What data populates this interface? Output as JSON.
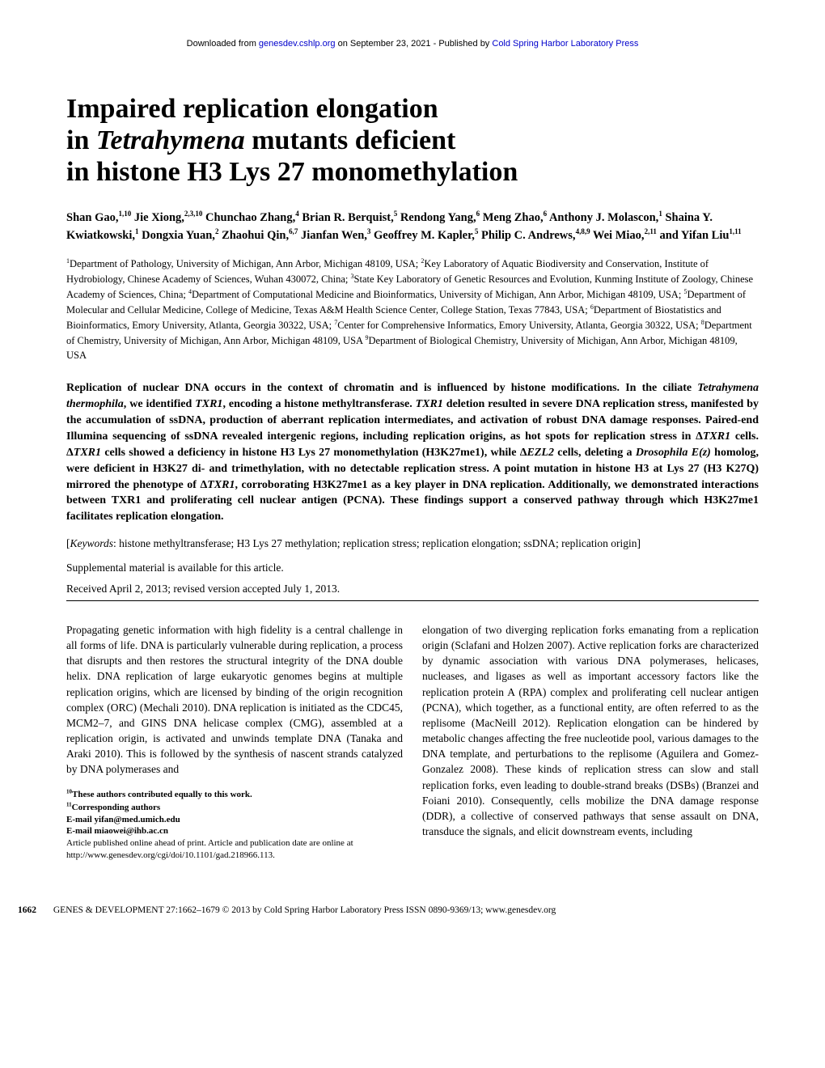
{
  "header": {
    "prefix": "Downloaded from ",
    "link1": "genesdev.cshlp.org",
    "mid": " on September 23, 2021 - Published by ",
    "link2": "Cold Spring Harbor Laboratory Press"
  },
  "title": {
    "line1": "Impaired replication elongation",
    "line2_a": "in ",
    "line2_b": "Tetrahymena",
    "line2_c": " mutants deficient",
    "line3": "in histone H3 Lys 27 monomethylation"
  },
  "authors": "Shan Gao,<sup>1,10</sup> Jie Xiong,<sup>2,3,10</sup> Chunchao Zhang,<sup>4</sup> Brian R. Berquist,<sup>5</sup> Rendong Yang,<sup>6</sup> Meng Zhao,<sup>6</sup> Anthony J. Molascon,<sup>1</sup> Shaina Y. Kwiatkowski,<sup>1</sup> Dongxia Yuan,<sup>2</sup> Zhaohui Qin,<sup>6,7</sup> Jianfan Wen,<sup>3</sup> Geoffrey M. Kapler,<sup>5</sup> Philip C. Andrews,<sup>4,8,9</sup> Wei Miao,<sup>2,11</sup> and Yifan Liu<sup>1,11</sup>",
  "affiliations": "<sup>1</sup>Department of Pathology, University of Michigan, Ann Arbor, Michigan 48109, USA; <sup>2</sup>Key Laboratory of Aquatic Biodiversity and Conservation, Institute of Hydrobiology, Chinese Academy of Sciences, Wuhan 430072, China; <sup>3</sup>State Key Laboratory of Genetic Resources and Evolution, Kunming Institute of Zoology, Chinese Academy of Sciences, China; <sup>4</sup>Department of Computational Medicine and Bioinformatics, University of Michigan, Ann Arbor, Michigan 48109, USA; <sup>5</sup>Department of Molecular and Cellular Medicine, College of Medicine, Texas A&amp;M Health Science Center, College Station, Texas 77843, USA; <sup>6</sup>Department of Biostatistics and Bioinformatics, Emory University, Atlanta, Georgia 30322, USA; <sup>7</sup>Center for Comprehensive Informatics, Emory University, Atlanta, Georgia 30322, USA; <sup>8</sup>Department of Chemistry, University of Michigan, Ann Arbor, Michigan 48109, USA <sup>9</sup>Department of Biological Chemistry, University of Michigan, Ann Arbor, Michigan 48109, USA",
  "abstract": "Replication of nuclear DNA occurs in the context of chromatin and is influenced by histone modifications. In the ciliate <span class=\"ital\">Tetrahymena thermophila</span>, we identified <span class=\"ital\">TXR1</span>, encoding a histone methyltransferase. <span class=\"ital\">TXR1</span> deletion resulted in severe DNA replication stress, manifested by the accumulation of ssDNA, production of aberrant replication intermediates, and activation of robust DNA damage responses. Paired-end Illumina sequencing of ssDNA revealed intergenic regions, including replication origins, as hot spots for replication stress in Δ<span class=\"ital\">TXR1</span> cells. Δ<span class=\"ital\">TXR1</span> cells showed a deficiency in histone H3 Lys 27 monomethylation (H3K27me1), while Δ<span class=\"ital\">EZL2</span> cells, deleting a <span class=\"ital\">Drosophila E(z)</span> homolog, were deficient in H3K27 di- and trimethylation, with no detectable replication stress. A point mutation in histone H3 at Lys 27 (H3 K27Q) mirrored the phenotype of Δ<span class=\"ital\">TXR1</span>, corroborating H3K27me1 as a key player in DNA replication. Additionally, we demonstrated interactions between TXR1 and proliferating cell nuclear antigen (PCNA). These findings support a conserved pathway through which H3K27me1 facilitates replication elongation.",
  "keywords": "[<span class=\"ital\">Keywords</span>: histone methyltransferase; H3 Lys 27 methylation; replication stress; replication elongation; ssDNA; replication origin]",
  "supplemental": "Supplemental material is available for this article.",
  "dates": "Received April 2, 2013; revised version accepted July 1, 2013.",
  "body": {
    "col1_p1": "Propagating genetic information with high fidelity is a central challenge in all forms of life. DNA is particularly vulnerable during replication, a process that disrupts and then restores the structural integrity of the DNA double helix. DNA replication of large eukaryotic genomes begins at multiple replication origins, which are licensed by binding of the origin recognition complex (ORC) (Mechali 2010). DNA replication is initiated as the CDC45, MCM2–7, and GINS DNA helicase complex (CMG), assembled at a replication origin, is activated and unwinds template DNA (Tanaka and Araki 2010). This is followed by the synthesis of nascent strands catalyzed by DNA polymerases and",
    "col2_p1": "elongation of two diverging replication forks emanating from a replication origin (Sclafani and Holzen 2007). Active replication forks are characterized by dynamic association with various DNA polymerases, helicases, nucleases, and ligases as well as important accessory factors like the replication protein A (RPA) complex and proliferating cell nuclear antigen (PCNA), which together, as a functional entity, are often referred to as the replisome (MacNeill 2012). Replication elongation can be hindered by metabolic changes affecting the free nucleotide pool, various damages to the DNA template, and perturbations to the replisome (Aguilera and Gomez-Gonzalez 2008). These kinds of replication stress can slow and stall replication forks, even leading to double-strand breaks (DSBs) (Branzei and Foiani 2010). Consequently, cells mobilize the DNA damage response (DDR), a collective of conserved pathways that sense assault on DNA, transduce the signals, and elicit downstream events, including"
  },
  "footnotes": {
    "f1": "<sup>10</sup>These authors contributed equally to this work.",
    "f2": "<sup>11</sup>Corresponding authors",
    "f3": "E-mail yifan@med.umich.edu",
    "f4": "E-mail miaowei@ihb.ac.cn",
    "f5": "Article published online ahead of print. Article and publication date are online at http://www.genesdev.org/cgi/doi/10.1101/gad.218966.113."
  },
  "footer": {
    "page": "1662",
    "rest": "GENES & DEVELOPMENT 27:1662–1679 © 2013 by Cold Spring Harbor Laboratory Press ISSN 0890-9369/13; www.genesdev.org"
  }
}
